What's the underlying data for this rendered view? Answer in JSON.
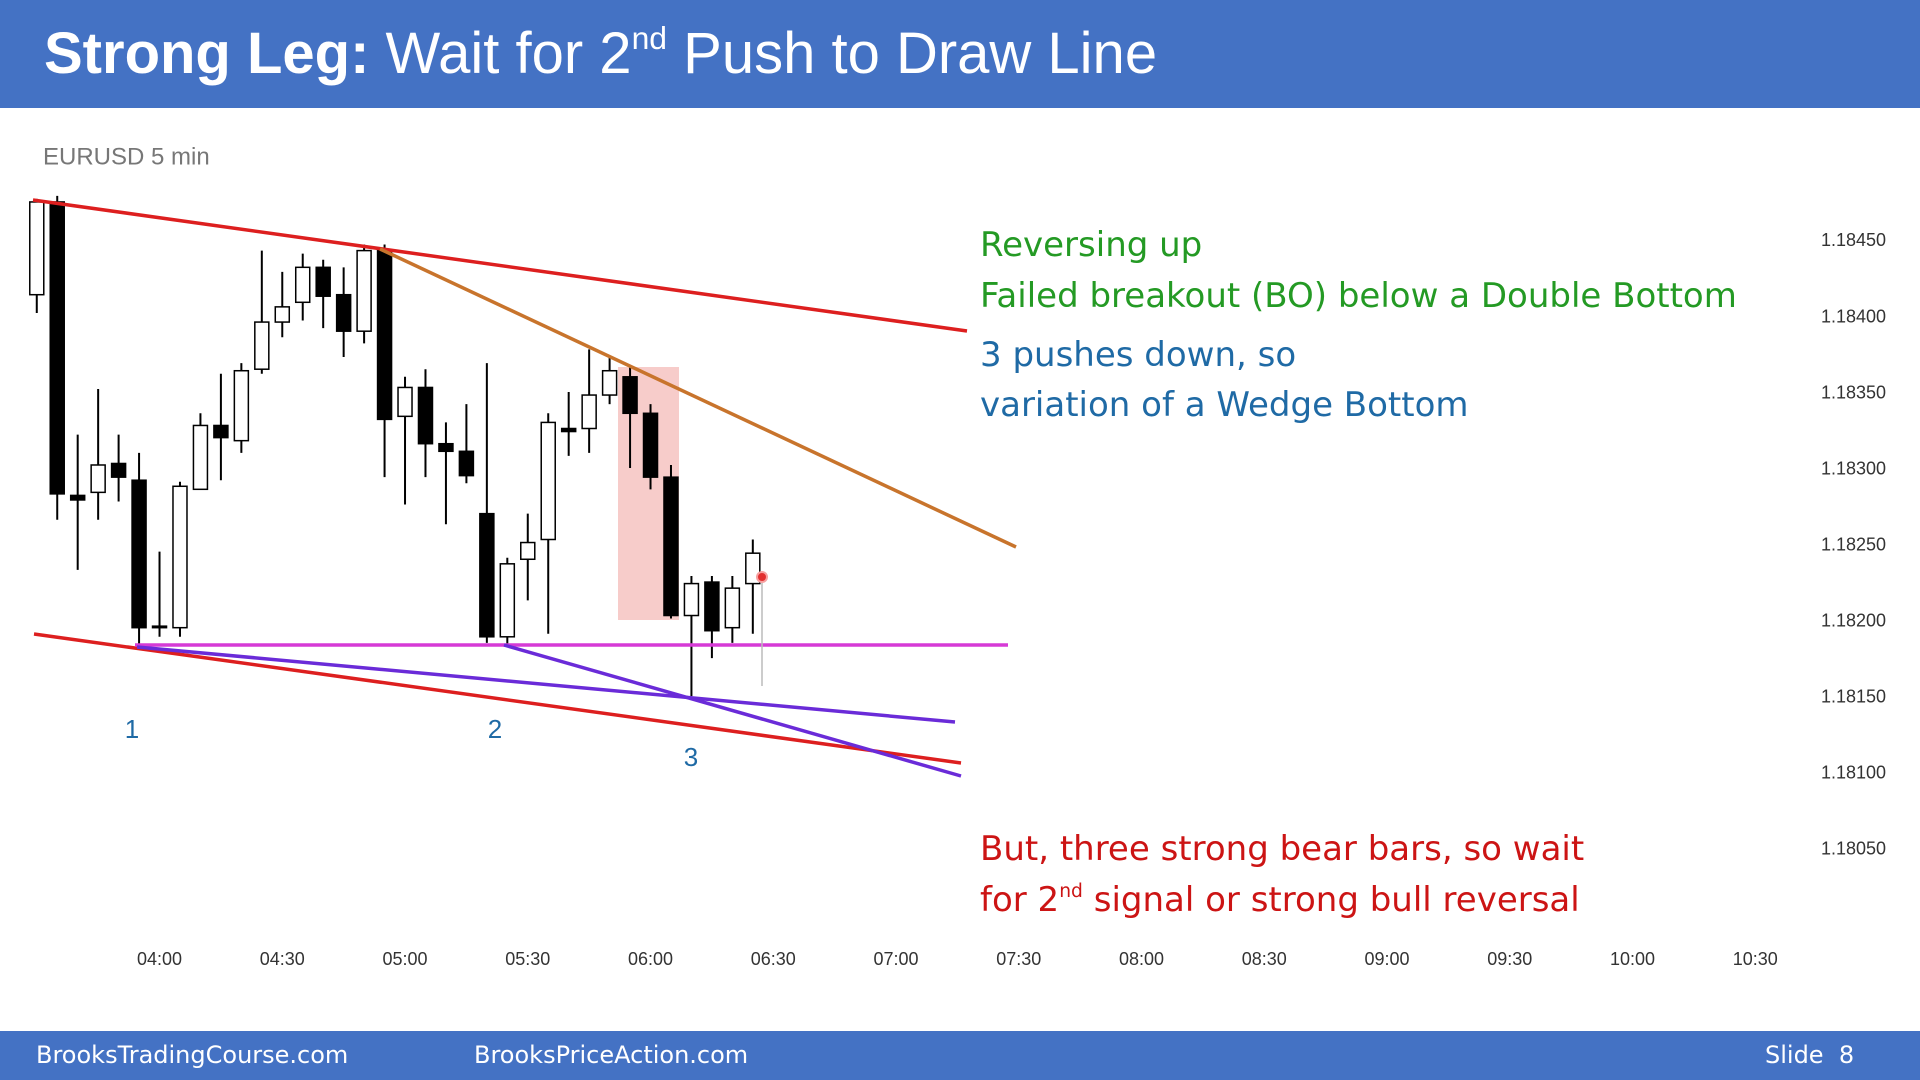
{
  "header": {
    "title_bold": "Strong Leg:",
    "title": "Wait for 2",
    "title_sup": "nd",
    "title_rest": " Push to Draw Line"
  },
  "footer": {
    "left": "BrooksTradingCourse.com",
    "middle": "BrooksPriceAction.com",
    "right": "Slide  8"
  },
  "chart_data": {
    "type": "candlestick",
    "subtitle": "EURUSD 5 min",
    "x": [
      210,
      215,
      220,
      225,
      230,
      235,
      240,
      245,
      250,
      255,
      260,
      265,
      270,
      275,
      280,
      285,
      290,
      295,
      300,
      305,
      310,
      315,
      320,
      325,
      330,
      335,
      340,
      345,
      350,
      355,
      360,
      365,
      370,
      375,
      380,
      385
    ],
    "open": [
      1.18415,
      1.18476,
      1.18283,
      1.18285,
      1.18304,
      1.18293,
      1.18197,
      1.18196,
      1.18287,
      1.18329,
      1.18319,
      1.18366,
      1.18397,
      1.1841,
      1.18433,
      1.18415,
      1.18391,
      1.18444,
      1.18335,
      1.18354,
      1.18317,
      1.18312,
      1.18271,
      1.1819,
      1.18241,
      1.18254,
      1.18327,
      1.18327,
      1.18349,
      1.18361,
      1.18337,
      1.18295,
      1.18204,
      1.18226,
      1.18196,
      1.18225
    ],
    "high": [
      1.18478,
      1.1848,
      1.18323,
      1.18353,
      1.18323,
      1.18311,
      1.18246,
      1.18292,
      1.18337,
      1.18363,
      1.1837,
      1.18444,
      1.1843,
      1.18442,
      1.18438,
      1.18433,
      1.18448,
      1.18448,
      1.18361,
      1.18366,
      1.18331,
      1.18343,
      1.1837,
      1.18242,
      1.18271,
      1.18337,
      1.18351,
      1.18379,
      1.18374,
      1.18367,
      1.18343,
      1.18303,
      1.1823,
      1.1823,
      1.1823,
      1.18254
    ],
    "low": [
      1.18403,
      1.18267,
      1.18234,
      1.18267,
      1.18279,
      1.18184,
      1.1819,
      1.1819,
      1.18287,
      1.18293,
      1.18311,
      1.18363,
      1.18387,
      1.18398,
      1.18393,
      1.18374,
      1.18383,
      1.18295,
      1.18277,
      1.18295,
      1.18264,
      1.18291,
      1.18186,
      1.18184,
      1.18214,
      1.18192,
      1.18309,
      1.18311,
      1.18343,
      1.18301,
      1.18287,
      1.18202,
      1.18151,
      1.18176,
      1.18186,
      1.18192
    ],
    "close": [
      1.18476,
      1.18284,
      1.1828,
      1.18303,
      1.18295,
      1.18196,
      1.18196,
      1.18289,
      1.18329,
      1.18321,
      1.18365,
      1.18397,
      1.18407,
      1.18433,
      1.18414,
      1.18391,
      1.18444,
      1.18333,
      1.18354,
      1.18317,
      1.18312,
      1.18296,
      1.1819,
      1.18238,
      1.18252,
      1.18331,
      1.18325,
      1.18349,
      1.18365,
      1.18337,
      1.18295,
      1.18204,
      1.18225,
      1.18194,
      1.18222,
      1.18245
    ],
    "bull_color": "#ffffff",
    "bear_color": "#000000",
    "xlim": [
      207,
      638
    ],
    "xticks": [
      {
        "value": 240,
        "label": "04:00"
      },
      {
        "value": 270,
        "label": "04:30"
      },
      {
        "value": 300,
        "label": "05:00"
      },
      {
        "value": 330,
        "label": "05:30"
      },
      {
        "value": 360,
        "label": "06:00"
      },
      {
        "value": 390,
        "label": "06:30"
      },
      {
        "value": 420,
        "label": "07:00"
      },
      {
        "value": 450,
        "label": "07:30"
      },
      {
        "value": 480,
        "label": "08:00"
      },
      {
        "value": 510,
        "label": "08:30"
      },
      {
        "value": 540,
        "label": "09:00"
      },
      {
        "value": 570,
        "label": "09:30"
      },
      {
        "value": 600,
        "label": "10:00"
      },
      {
        "value": 630,
        "label": "10:30"
      }
    ],
    "ylim": [
      1.18,
      1.18488
    ],
    "yticks": [
      {
        "value": 1.1805,
        "label": "1.18050"
      },
      {
        "value": 1.181,
        "label": "1.18100"
      },
      {
        "value": 1.1815,
        "label": "1.18150"
      },
      {
        "value": 1.182,
        "label": "1.18200"
      },
      {
        "value": 1.1825,
        "label": "1.18250"
      },
      {
        "value": 1.183,
        "label": "1.18300"
      },
      {
        "value": 1.1835,
        "label": "1.18350"
      },
      {
        "value": 1.184,
        "label": "1.18400"
      },
      {
        "value": 1.1845,
        "label": "1.18450"
      }
    ],
    "grid": false,
    "wave_labels": [
      "1",
      "2",
      "3"
    ],
    "annotations": {
      "green": [
        "Reversing up",
        "Failed breakout (BO) below a Double Bottom"
      ],
      "blue": [
        "3 pushes down, so",
        "variation of a Wedge Bottom"
      ],
      "red_1": "But, three strong bear bars, so wait",
      "red_2": "for 2",
      "red_2_sup": "nd",
      "red_2_rest": " signal or strong bull reversal"
    }
  }
}
